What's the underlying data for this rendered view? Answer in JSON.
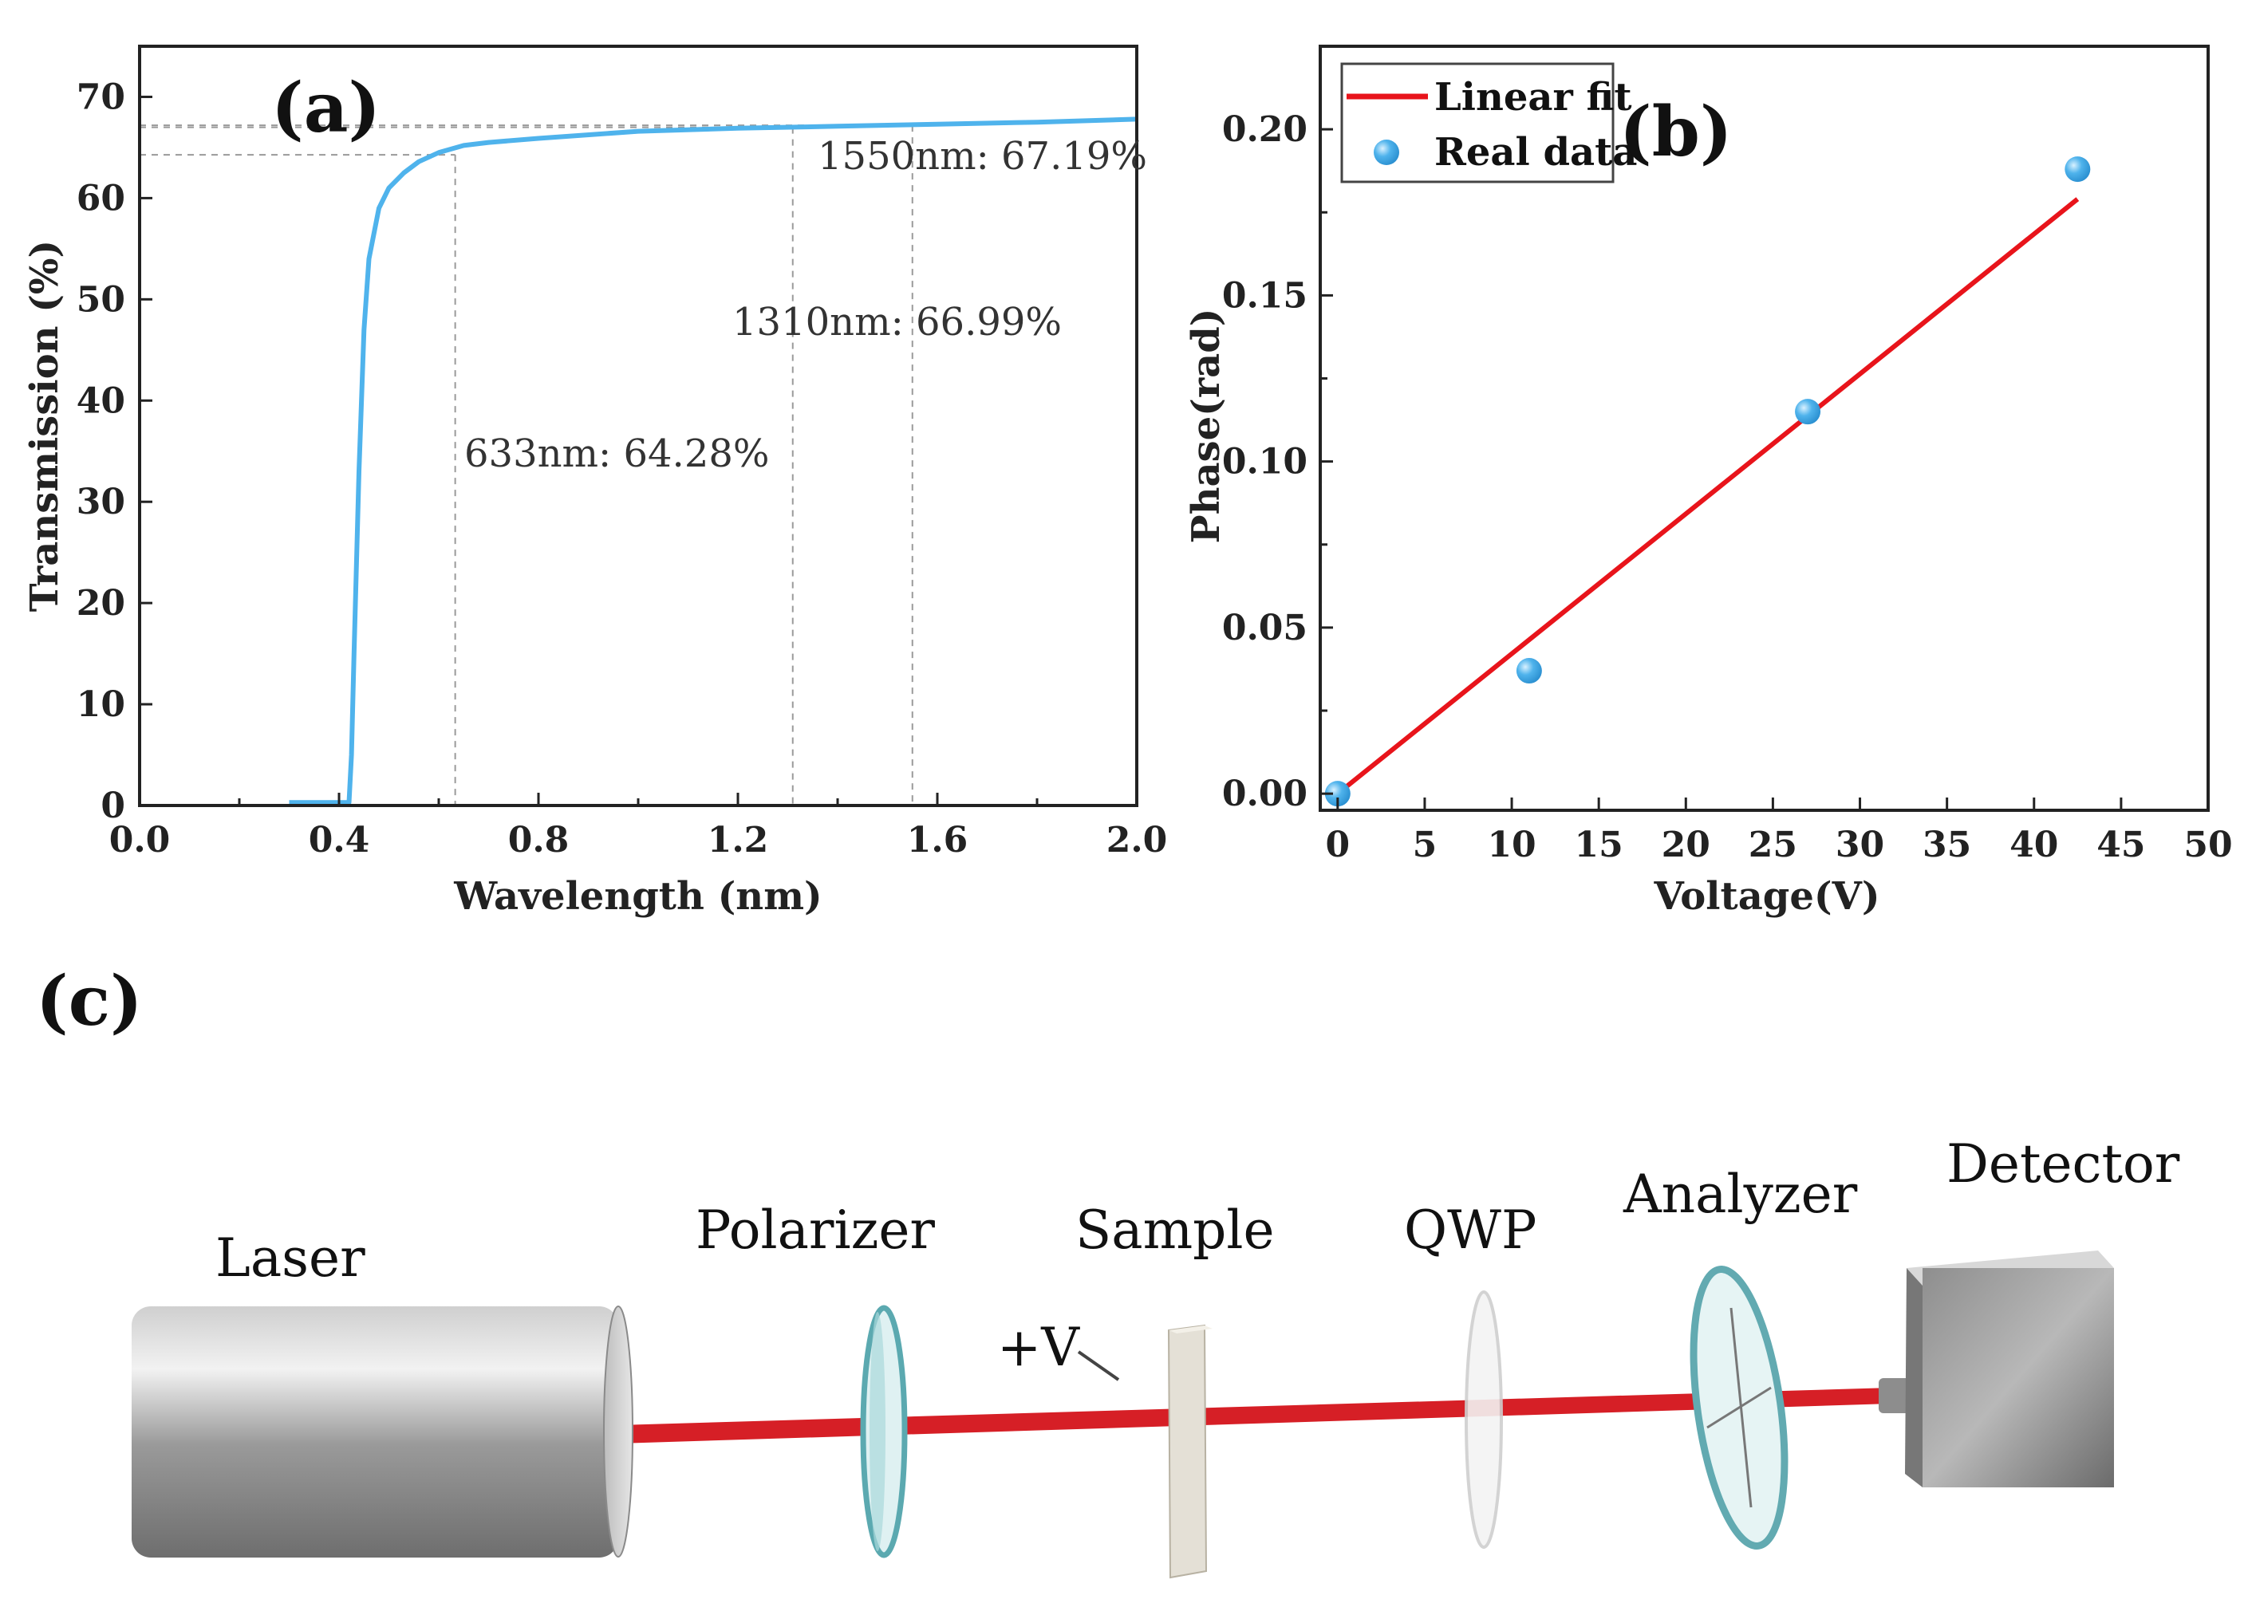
{
  "panels": {
    "a": "(a)",
    "b": "(b)",
    "c": "(c)"
  },
  "chart_data": [
    {
      "type": "line",
      "panel": "(a)",
      "xlabel": "Wavelength (nm)",
      "ylabel": "Transmission (%)",
      "xlim": [
        0.0,
        2.0
      ],
      "ylim": [
        0,
        75
      ],
      "xticks": [
        "0.0",
        "0.4",
        "0.8",
        "1.2",
        "1.6",
        "2.0"
      ],
      "yticks": [
        "0",
        "10",
        "20",
        "30",
        "40",
        "50",
        "60",
        "70"
      ],
      "color": "#4fb3ec",
      "series": [
        {
          "x": [
            0.3,
            0.42,
            0.425,
            0.43,
            0.44,
            0.45,
            0.46,
            0.48,
            0.5,
            0.53,
            0.56,
            0.6,
            0.65,
            0.7,
            0.8,
            1.0,
            1.2,
            1.4,
            1.6,
            1.8,
            2.0
          ],
          "y": [
            0.3,
            0.3,
            5,
            15,
            33,
            47,
            54,
            59,
            61,
            62.5,
            63.6,
            64.5,
            65.2,
            65.5,
            65.9,
            66.6,
            66.9,
            67.1,
            67.3,
            67.5,
            67.8
          ]
        }
      ],
      "reference_lines": [
        {
          "x": 0.633,
          "y": 64.28,
          "label": "633nm: 64.28%"
        },
        {
          "x": 1.31,
          "y": 66.99,
          "label": "1310nm: 66.99%"
        },
        {
          "x": 1.55,
          "y": 67.19,
          "label": "1550nm: 67.19%"
        }
      ]
    },
    {
      "type": "scatter",
      "panel": "(b)",
      "xlabel": "Voltage(V)",
      "ylabel": "Phase(rad)",
      "xlim": [
        -1,
        50
      ],
      "ylim": [
        -0.005,
        0.225
      ],
      "xticks": [
        "0",
        "5",
        "10",
        "15",
        "20",
        "25",
        "30",
        "35",
        "40",
        "45",
        "50"
      ],
      "yticks": [
        "0.00",
        "0.05",
        "0.10",
        "0.15",
        "0.20"
      ],
      "legend": "top-left",
      "series": [
        {
          "name": "Linear fit",
          "type": "line",
          "color": "#e8141b",
          "x": [
            0,
            42.5
          ],
          "y": [
            0.0,
            0.179
          ]
        },
        {
          "name": "Real data",
          "type": "scatter",
          "color": "#4fb3ec",
          "x": [
            0,
            11,
            27,
            42.5
          ],
          "y": [
            0.0,
            0.037,
            0.115,
            0.188
          ]
        }
      ]
    }
  ],
  "setup": {
    "components": [
      {
        "label": "Laser"
      },
      {
        "label": "Polarizer"
      },
      {
        "label": "Sample"
      },
      {
        "label": "QWP"
      },
      {
        "label": "Analyzer"
      },
      {
        "label": "Detector"
      }
    ],
    "voltage_label": "+V",
    "beam_color": "#d61f26"
  }
}
